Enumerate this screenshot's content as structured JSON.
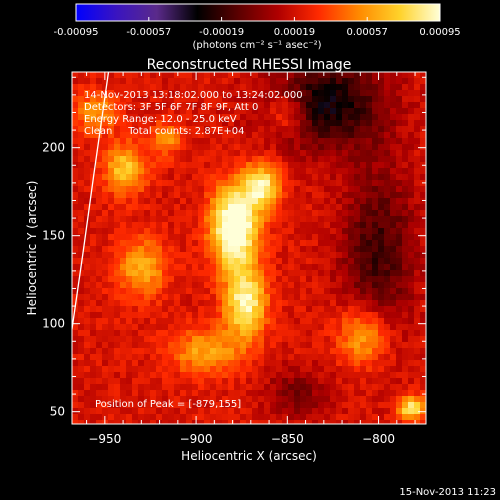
{
  "chart_data": {
    "type": "heatmap",
    "title": "Reconstructed RHESSI Image",
    "colorbar": {
      "ticks": [
        "-0.00095",
        "-0.00057",
        "-0.00019",
        "0.00019",
        "0.00057",
        "0.00095"
      ],
      "range": [
        -0.00095,
        0.00095
      ],
      "units_line": "(photons cm⁻² s⁻¹ asec⁻²)",
      "colors": [
        "#0000ff",
        "#3a14c0",
        "#5a2a8a",
        "#000000",
        "#5a0000",
        "#b00000",
        "#ff2a00",
        "#ff8a00",
        "#ffd22a",
        "#ffffd8"
      ]
    },
    "info_lines": [
      "14-Nov-2013 13:18:02.000 to 13:24:02.000",
      "Detectors: 3F 5F 6F 7F 8F 9F, Att 0",
      "Energy Range: 12.0 - 25.0 keV",
      "Clean     Total counts: 2.87E+04"
    ],
    "peak_text": "Position of Peak = [-879,155]",
    "peak": [
      -879,
      155
    ],
    "xlabel": "Heliocentric X (arcsec)",
    "ylabel": "Heliocentric Y (arcsec)",
    "xlim": [
      -968,
      -774
    ],
    "ylim": [
      43,
      243
    ],
    "xticks": [
      -950,
      -900,
      -850,
      -800
    ],
    "xtick_labels": [
      "−950",
      "−900",
      "−850",
      "−800"
    ],
    "yticks": [
      50,
      100,
      150,
      200
    ],
    "ytick_labels": [
      "50",
      "100",
      "150",
      "200"
    ],
    "limb_arc": [
      [
        -968,
        97
      ],
      [
        -962,
        140
      ],
      [
        -956,
        185
      ],
      [
        -948,
        243
      ]
    ],
    "sources": [
      {
        "x": -879,
        "y": 155,
        "sx": 9,
        "sy": 16,
        "amp": 1.0
      },
      {
        "x": -873,
        "y": 112,
        "sx": 8,
        "sy": 14,
        "amp": 0.75
      },
      {
        "x": -864,
        "y": 178,
        "sx": 7,
        "sy": 9,
        "amp": 0.72
      },
      {
        "x": -939,
        "y": 188,
        "sx": 8,
        "sy": 10,
        "amp": 0.55
      },
      {
        "x": -930,
        "y": 132,
        "sx": 10,
        "sy": 12,
        "amp": 0.45
      },
      {
        "x": -808,
        "y": 93,
        "sx": 10,
        "sy": 12,
        "amp": 0.5
      },
      {
        "x": -895,
        "y": 84,
        "sx": 14,
        "sy": 9,
        "amp": 0.42
      },
      {
        "x": -782,
        "y": 52,
        "sx": 5,
        "sy": 5,
        "amp": 0.7
      },
      {
        "x": -955,
        "y": 220,
        "sx": 8,
        "sy": 8,
        "amp": 0.4
      },
      {
        "x": -850,
        "y": 220,
        "sx": 8,
        "sy": 8,
        "amp": 0.35
      },
      {
        "x": -916,
        "y": 205,
        "sx": 6,
        "sy": 7,
        "amp": 0.35
      }
    ],
    "negative_regions": [
      {
        "x": -828,
        "y": 225,
        "sx": 22,
        "sy": 18,
        "amp": 0.55
      },
      {
        "x": -800,
        "y": 140,
        "sx": 14,
        "sy": 35,
        "amp": 0.4
      },
      {
        "x": -845,
        "y": 60,
        "sx": 12,
        "sy": 10,
        "amp": 0.25
      }
    ]
  },
  "footer": {
    "timestamp": "15-Nov-2013 11:23"
  }
}
